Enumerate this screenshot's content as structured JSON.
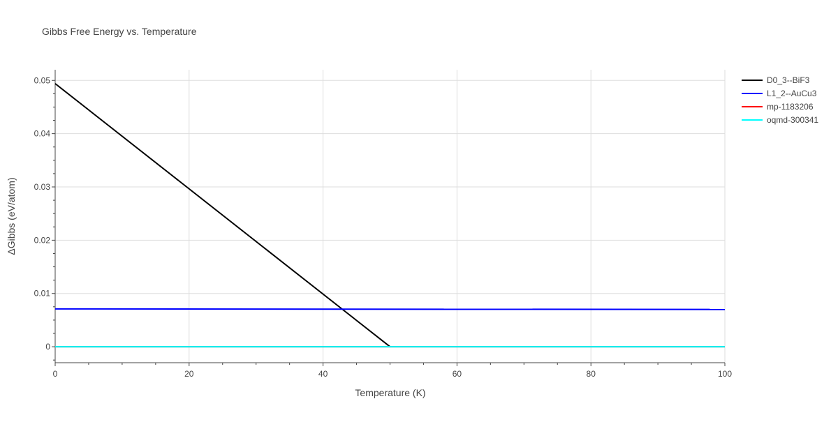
{
  "chart_data": {
    "type": "line",
    "title": "Gibbs Free Energy vs. Temperature",
    "xlabel": "Temperature (K)",
    "ylabel": "ΔGibbs (eV/atom)",
    "xlim": [
      0,
      100
    ],
    "ylim": [
      -0.003,
      0.052
    ],
    "x_ticks": [
      0,
      20,
      40,
      60,
      80,
      100
    ],
    "x_tick_labels": [
      "0",
      "20",
      "40",
      "60",
      "80",
      "100"
    ],
    "y_ticks": [
      0,
      0.01,
      0.02,
      0.03,
      0.04,
      0.05
    ],
    "y_tick_labels": [
      "0",
      "0.01",
      "0.02",
      "0.03",
      "0.04",
      "0.05"
    ],
    "grid": true,
    "legend_position": "top-right",
    "series": [
      {
        "name": "D0_3--BiF3",
        "color": "#000000",
        "x": [
          0,
          50
        ],
        "y": [
          0.0494,
          0.0
        ]
      },
      {
        "name": "L1_2--AuCu3",
        "color": "#0000ff",
        "x": [
          0,
          100
        ],
        "y": [
          0.0071,
          0.007
        ]
      },
      {
        "name": "mp-1183206",
        "color": "#ff0000",
        "x": [
          0,
          100
        ],
        "y": [
          0.0,
          0.0
        ]
      },
      {
        "name": "oqmd-300341",
        "color": "#00ffff",
        "x": [
          0,
          100
        ],
        "y": [
          0.0,
          0.0
        ]
      }
    ]
  }
}
